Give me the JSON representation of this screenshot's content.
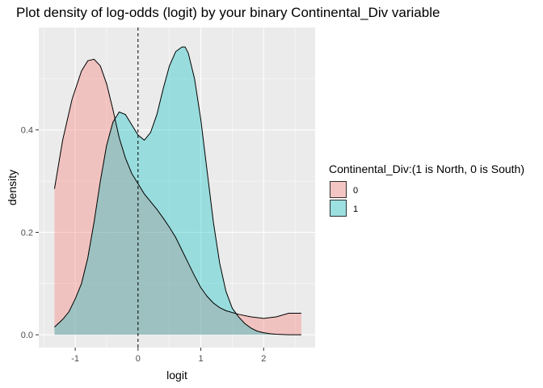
{
  "title": "Plot density of log-odds (logit) by your binary Continental_Div variable",
  "chart_data": {
    "type": "area",
    "title": "Plot density of log-odds (logit) by your binary Continental_Div variable",
    "xlabel": "logit",
    "ylabel": "density",
    "xlim": [
      -1.58,
      2.82
    ],
    "ylim": [
      -0.025,
      0.6
    ],
    "x_ticks": [
      -1,
      0,
      1,
      2
    ],
    "y_ticks": [
      0.0,
      0.2,
      0.4
    ],
    "y_tick_labels": [
      "0.0",
      "0.2",
      "0.4"
    ],
    "grid": true,
    "vline": {
      "x": 0,
      "style": "dashed"
    },
    "legend": {
      "title": "Continental_Div:(1 is North, 0 is South)",
      "placement": "right",
      "entries": [
        "0",
        "1"
      ]
    },
    "series": [
      {
        "name": "0",
        "color": "#F8766D",
        "x": [
          -1.33,
          -1.2,
          -1.05,
          -0.9,
          -0.8,
          -0.7,
          -0.6,
          -0.5,
          -0.4,
          -0.3,
          -0.2,
          -0.1,
          0.0,
          0.1,
          0.2,
          0.3,
          0.4,
          0.5,
          0.6,
          0.7,
          0.8,
          0.9,
          1.0,
          1.1,
          1.2,
          1.3,
          1.4,
          1.6,
          1.8,
          2.0,
          2.2,
          2.4,
          2.6
        ],
        "values": [
          0.285,
          0.38,
          0.46,
          0.515,
          0.535,
          0.538,
          0.525,
          0.49,
          0.44,
          0.385,
          0.345,
          0.315,
          0.295,
          0.275,
          0.26,
          0.245,
          0.228,
          0.21,
          0.19,
          0.165,
          0.14,
          0.115,
          0.092,
          0.075,
          0.062,
          0.053,
          0.047,
          0.04,
          0.035,
          0.032,
          0.035,
          0.042,
          0.042
        ]
      },
      {
        "name": "1",
        "color": "#00BFC4",
        "x": [
          -1.33,
          -1.2,
          -1.1,
          -1.0,
          -0.9,
          -0.8,
          -0.7,
          -0.6,
          -0.5,
          -0.4,
          -0.3,
          -0.2,
          -0.1,
          0.0,
          0.1,
          0.2,
          0.3,
          0.4,
          0.5,
          0.6,
          0.7,
          0.75,
          0.8,
          0.9,
          1.0,
          1.1,
          1.2,
          1.3,
          1.4,
          1.5,
          1.6,
          1.7,
          1.8,
          1.9,
          2.0,
          2.1,
          2.2,
          2.4,
          2.6
        ],
        "values": [
          0.015,
          0.03,
          0.045,
          0.07,
          0.1,
          0.15,
          0.22,
          0.3,
          0.37,
          0.415,
          0.435,
          0.43,
          0.41,
          0.39,
          0.38,
          0.395,
          0.43,
          0.48,
          0.525,
          0.553,
          0.562,
          0.562,
          0.55,
          0.5,
          0.42,
          0.32,
          0.22,
          0.14,
          0.085,
          0.052,
          0.035,
          0.022,
          0.013,
          0.007,
          0.004,
          0.002,
          0.001,
          0.0,
          0.0
        ]
      }
    ]
  }
}
